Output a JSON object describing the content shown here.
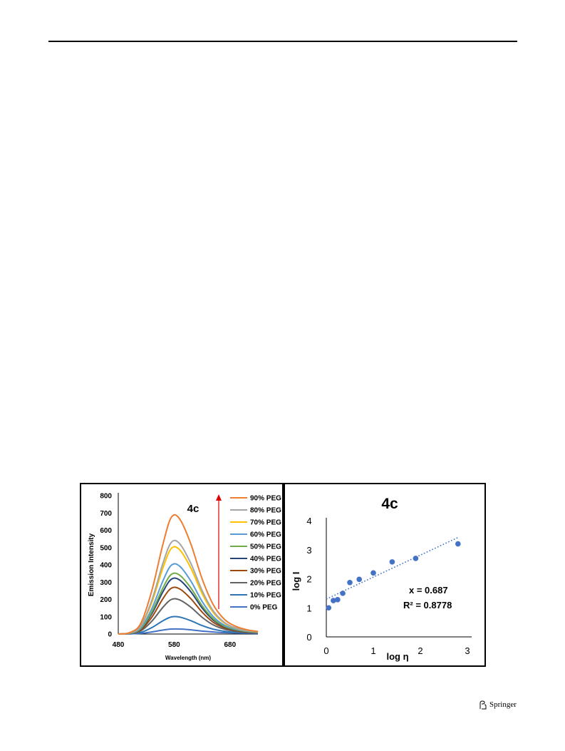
{
  "figure": {
    "panels": [
      "4c emission spectra",
      "4c log I vs log eta"
    ]
  },
  "footer": {
    "publisher": "Springer"
  },
  "chart_data": [
    {
      "type": "line",
      "title": "4c",
      "xlabel": "Wavelength (nm)",
      "ylabel": "Emission Intensity",
      "xlim": [
        480,
        730
      ],
      "ylim": [
        0,
        800
      ],
      "x_ticks": [
        480,
        580,
        680
      ],
      "y_ticks": [
        0,
        100,
        200,
        300,
        400,
        500,
        600,
        700,
        800
      ],
      "legend_position": "top-right",
      "x": [
        480,
        500,
        520,
        540,
        560,
        575,
        590,
        610,
        630,
        650,
        670,
        690,
        710,
        730
      ],
      "series": [
        {
          "name": "90% PEG",
          "color": "#ED7D31",
          "values": [
            0,
            8,
            60,
            250,
            520,
            675,
            665,
            520,
            320,
            170,
            85,
            45,
            25,
            15
          ]
        },
        {
          "name": "80% PEG",
          "color": "#A5A5A5",
          "values": [
            0,
            6,
            47,
            195,
            410,
            530,
            522,
            408,
            252,
            134,
            67,
            36,
            21,
            13
          ]
        },
        {
          "name": "70% PEG",
          "color": "#FFC000",
          "values": [
            0,
            6,
            44,
            182,
            383,
            495,
            487,
            381,
            235,
            125,
            63,
            34,
            20,
            12
          ]
        },
        {
          "name": "60% PEG",
          "color": "#5B9BD5",
          "values": [
            0,
            5,
            35,
            146,
            308,
            398,
            392,
            306,
            189,
            101,
            51,
            28,
            17,
            11
          ]
        },
        {
          "name": "50% PEG",
          "color": "#70AD47",
          "values": [
            0,
            4,
            30,
            127,
            267,
            345,
            340,
            266,
            164,
            88,
            45,
            25,
            15,
            10
          ]
        },
        {
          "name": "40% PEG",
          "color": "#264478",
          "values": [
            0,
            4,
            28,
            117,
            245,
            317,
            312,
            244,
            151,
            81,
            42,
            23,
            14,
            9
          ]
        },
        {
          "name": "30% PEG",
          "color": "#9E480E",
          "values": [
            0,
            3,
            23,
            97,
            205,
            265,
            261,
            204,
            127,
            68,
            36,
            20,
            12,
            8
          ]
        },
        {
          "name": "20% PEG",
          "color": "#636363",
          "values": [
            0,
            3,
            18,
            74,
            155,
            200,
            197,
            155,
            97,
            53,
            28,
            16,
            10,
            7
          ]
        },
        {
          "name": "10% PEG",
          "color": "#2E75B6",
          "values": [
            0,
            1,
            9,
            37,
            77,
            99,
            98,
            77,
            49,
            28,
            16,
            10,
            7,
            5
          ]
        },
        {
          "name": "0% PEG",
          "color": "#4472C4",
          "values": [
            0,
            1,
            4,
            12,
            23,
            29,
            29,
            24,
            17,
            12,
            8,
            6,
            5,
            4
          ]
        }
      ]
    },
    {
      "type": "scatter",
      "title": "4c",
      "xlabel": "log η",
      "ylabel": "log I",
      "xlim": [
        0,
        3
      ],
      "ylim": [
        0,
        4
      ],
      "x_ticks": [
        0,
        1,
        2,
        3
      ],
      "y_ticks": [
        0,
        1,
        2,
        3,
        4
      ],
      "points_color": "#4472C4",
      "points": [
        {
          "x": 0.05,
          "y": 1.0
        },
        {
          "x": 0.15,
          "y": 1.25
        },
        {
          "x": 0.24,
          "y": 1.28
        },
        {
          "x": 0.35,
          "y": 1.5
        },
        {
          "x": 0.5,
          "y": 1.87
        },
        {
          "x": 0.7,
          "y": 1.98
        },
        {
          "x": 1.0,
          "y": 2.2
        },
        {
          "x": 1.4,
          "y": 2.58
        },
        {
          "x": 1.9,
          "y": 2.7
        },
        {
          "x": 2.8,
          "y": 3.2
        }
      ],
      "trendline": {
        "style": "dotted",
        "x": [
          0,
          2.8
        ],
        "y": [
          1.3,
          3.42
        ]
      },
      "annotations": [
        "x = 0.687",
        "R² = 0.8778"
      ]
    }
  ]
}
